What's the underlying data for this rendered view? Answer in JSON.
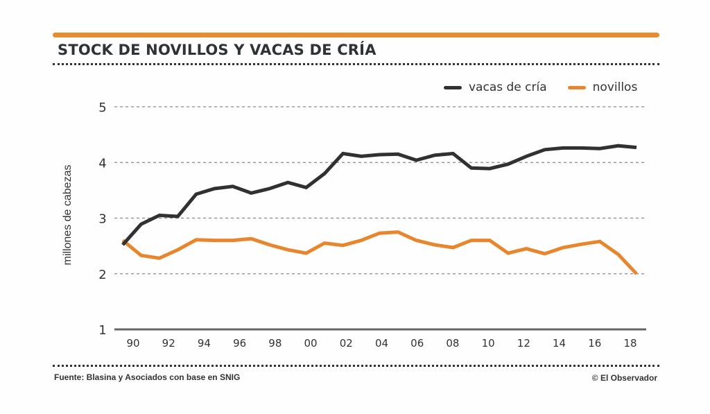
{
  "chart_data": {
    "type": "line",
    "title": "STOCK DE NOVILLOS Y VACAS DE CRÍA",
    "xlabel": "",
    "ylabel": "millones de cabezas",
    "ylim": [
      1,
      5
    ],
    "yticks": [
      "1",
      "2",
      "3",
      "4",
      "5"
    ],
    "xticks": [
      "90",
      "92",
      "94",
      "96",
      "98",
      "00",
      "02",
      "04",
      "06",
      "08",
      "10",
      "12",
      "14",
      "16",
      "18"
    ],
    "grid": "horizontal-dashed",
    "legend_position": "top-right",
    "x": [
      1990,
      1991,
      1992,
      1993,
      1994,
      1995,
      1996,
      1997,
      1998,
      1999,
      2000,
      2001,
      2002,
      2003,
      2004,
      2005,
      2006,
      2007,
      2008,
      2009,
      2010,
      2011,
      2012,
      2013,
      2014,
      2015,
      2016,
      2017,
      2018
    ],
    "series": [
      {
        "name": "vacas de cría",
        "color": "#2f3133",
        "values": [
          2.52,
          2.89,
          3.05,
          3.03,
          3.43,
          3.53,
          3.57,
          3.45,
          3.53,
          3.64,
          3.55,
          3.8,
          4.16,
          4.11,
          4.14,
          4.15,
          4.04,
          4.13,
          4.16,
          3.9,
          3.89,
          3.97,
          4.11,
          4.23,
          4.26,
          4.26,
          4.25,
          4.3,
          4.27
        ]
      },
      {
        "name": "novillos",
        "color": "#e8862e",
        "values": [
          2.6,
          2.33,
          2.28,
          2.43,
          2.61,
          2.6,
          2.6,
          2.63,
          2.52,
          2.43,
          2.37,
          2.55,
          2.51,
          2.6,
          2.73,
          2.75,
          2.6,
          2.52,
          2.47,
          2.6,
          2.6,
          2.37,
          2.45,
          2.36,
          2.47,
          2.53,
          2.58,
          2.35,
          2.0
        ]
      }
    ]
  },
  "footer": {
    "source": "Fuente: Blasina y Asociados con base en SNIG",
    "credit": "© El Observador"
  },
  "colors": {
    "accent": "#ea8a2f",
    "text": "#2f3336"
  }
}
